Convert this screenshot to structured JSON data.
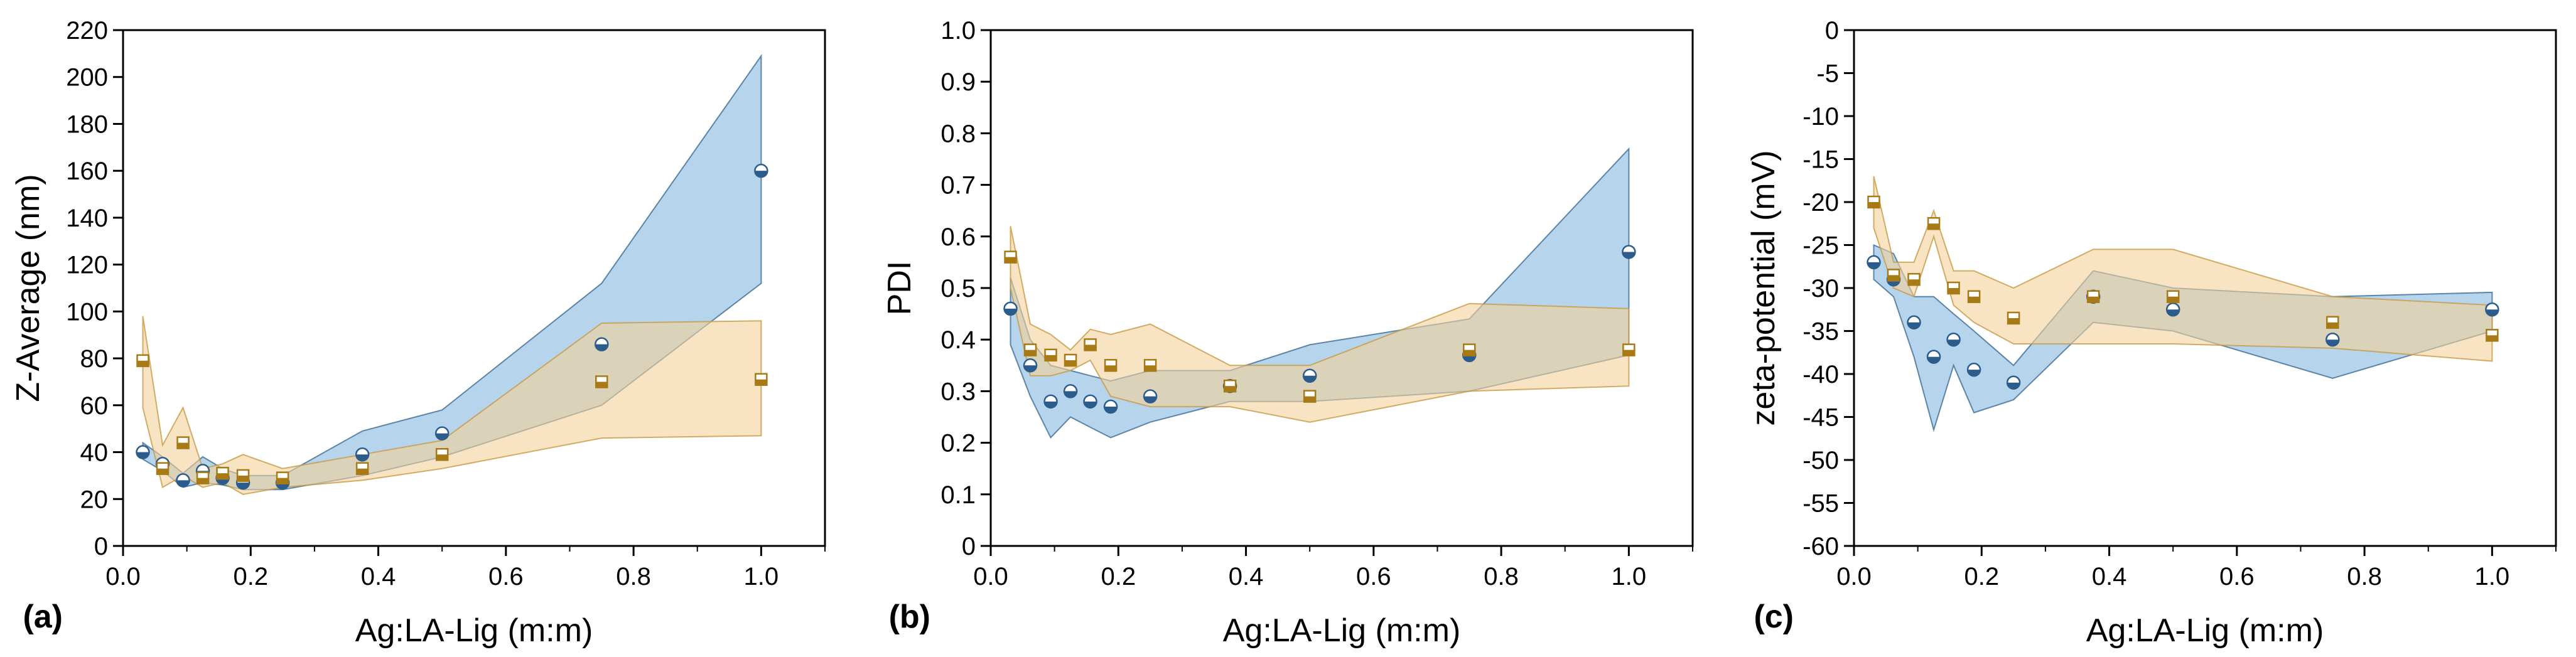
{
  "colors": {
    "blue_band_fill": "#a9cde9",
    "blue_band_edge": "#3c6c95",
    "orange_band_fill": "#f4d19a",
    "orange_band_edge": "#c79a45",
    "blue_marker": "#2c5c8c",
    "orange_marker": "#a77a16",
    "axis": "#000000"
  },
  "chart_data": [
    {
      "type": "scatter",
      "panel": "(a)",
      "xlabel": "Ag:LA-Lig (m:m)",
      "ylabel": "Z-Average (nm)",
      "xlim": [
        0.0,
        1.1
      ],
      "ylim": [
        0,
        220
      ],
      "xticks": [
        "0.0",
        "0.2",
        "0.4",
        "0.6",
        "0.8",
        "1.0"
      ],
      "xtick_values": [
        0.0,
        0.2,
        0.4,
        0.6,
        0.8,
        1.0
      ],
      "yticks": [
        "0",
        "20",
        "40",
        "60",
        "80",
        "100",
        "120",
        "140",
        "160",
        "180",
        "200",
        "220"
      ],
      "ytick_values": [
        0,
        20,
        40,
        60,
        80,
        100,
        120,
        140,
        160,
        180,
        200,
        220
      ],
      "series": [
        {
          "name": "blue",
          "color": "#2c5c8c",
          "x": [
            0.031,
            0.062,
            0.094,
            0.125,
            0.156,
            0.188,
            0.25,
            0.375,
            0.5,
            0.75,
            1.0
          ],
          "y": [
            40,
            35,
            28,
            32,
            29,
            27,
            27,
            39,
            48,
            86,
            160
          ],
          "band_upper": [
            44,
            38,
            31,
            38,
            33,
            30,
            30,
            49,
            58,
            112,
            209
          ],
          "band_lower": [
            37,
            32,
            25,
            27,
            26,
            24,
            24,
            30,
            38,
            60,
            112
          ]
        },
        {
          "name": "orange",
          "color": "#a77a16",
          "x": [
            0.031,
            0.062,
            0.094,
            0.125,
            0.156,
            0.188,
            0.25,
            0.375,
            0.5,
            0.75,
            1.0
          ],
          "y": [
            79,
            33,
            44,
            29,
            31,
            30,
            29,
            33,
            39,
            70,
            71
          ],
          "band_upper": [
            98,
            43,
            59,
            33,
            35,
            39,
            33,
            39,
            45,
            95,
            96
          ],
          "band_lower": [
            59,
            25,
            30,
            25,
            27,
            22,
            25,
            28,
            33,
            46,
            47
          ]
        }
      ]
    },
    {
      "type": "scatter",
      "panel": "(b)",
      "xlabel": "Ag:LA-Lig (m:m)",
      "ylabel": "PDI",
      "xlim": [
        0.0,
        1.1
      ],
      "ylim": [
        0,
        1.0
      ],
      "xticks": [
        "0.0",
        "0.2",
        "0.4",
        "0.6",
        "0.8",
        "1.0"
      ],
      "xtick_values": [
        0.0,
        0.2,
        0.4,
        0.6,
        0.8,
        1.0
      ],
      "yticks": [
        "0",
        "0.1",
        "0.2",
        "0.3",
        "0.4",
        "0.5",
        "0.6",
        "0.7",
        "0.8",
        "0.9",
        "1.0"
      ],
      "ytick_values": [
        0,
        0.1,
        0.2,
        0.3,
        0.4,
        0.5,
        0.6,
        0.7,
        0.8,
        0.9,
        1.0
      ],
      "series": [
        {
          "name": "blue",
          "color": "#2c5c8c",
          "x": [
            0.031,
            0.062,
            0.094,
            0.125,
            0.156,
            0.188,
            0.25,
            0.375,
            0.5,
            0.75,
            1.0
          ],
          "y": [
            0.46,
            0.35,
            0.28,
            0.3,
            0.28,
            0.27,
            0.29,
            0.31,
            0.33,
            0.37,
            0.57
          ],
          "band_upper": [
            0.52,
            0.4,
            0.35,
            0.34,
            0.33,
            0.32,
            0.34,
            0.34,
            0.39,
            0.44,
            0.77
          ],
          "band_lower": [
            0.39,
            0.29,
            0.21,
            0.25,
            0.23,
            0.21,
            0.24,
            0.28,
            0.28,
            0.3,
            0.37
          ]
        },
        {
          "name": "orange",
          "color": "#a77a16",
          "x": [
            0.031,
            0.062,
            0.094,
            0.125,
            0.156,
            0.188,
            0.25,
            0.375,
            0.5,
            0.75,
            1.0
          ],
          "y": [
            0.56,
            0.38,
            0.37,
            0.36,
            0.39,
            0.35,
            0.35,
            0.31,
            0.29,
            0.38,
            0.38
          ],
          "band_upper": [
            0.62,
            0.43,
            0.41,
            0.38,
            0.42,
            0.41,
            0.43,
            0.35,
            0.35,
            0.47,
            0.46
          ],
          "band_lower": [
            0.5,
            0.33,
            0.33,
            0.34,
            0.36,
            0.29,
            0.27,
            0.27,
            0.24,
            0.3,
            0.31
          ]
        }
      ]
    },
    {
      "type": "scatter",
      "panel": "(c)",
      "xlabel": "Ag:LA-Lig (m:m)",
      "ylabel": "zeta-potential (mV)",
      "xlim": [
        0.0,
        1.1
      ],
      "ylim": [
        -60,
        0
      ],
      "xticks": [
        "0.0",
        "0.2",
        "0.4",
        "0.6",
        "0.8",
        "1.0"
      ],
      "xtick_values": [
        0.0,
        0.2,
        0.4,
        0.6,
        0.8,
        1.0
      ],
      "yticks": [
        "0",
        "-5",
        "-10",
        "-15",
        "-20",
        "-25",
        "-30",
        "-35",
        "-40",
        "-45",
        "-50",
        "-55",
        "-60"
      ],
      "ytick_values": [
        0,
        -5,
        -10,
        -15,
        -20,
        -25,
        -30,
        -35,
        -40,
        -45,
        -50,
        -55,
        -60
      ],
      "series": [
        {
          "name": "blue",
          "color": "#2c5c8c",
          "x": [
            0.031,
            0.062,
            0.094,
            0.125,
            0.156,
            0.188,
            0.25,
            0.375,
            0.5,
            0.75,
            1.0
          ],
          "y": [
            -27,
            -29,
            -34,
            -38,
            -36,
            -39.5,
            -41,
            -31,
            -32.5,
            -36,
            -32.5
          ],
          "band_upper": [
            -25,
            -26,
            -31,
            -31,
            -33,
            -35,
            -39,
            -28,
            -30,
            -31,
            -30.5
          ],
          "band_lower": [
            -29,
            -31,
            -38,
            -46.5,
            -39,
            -44.5,
            -43,
            -34,
            -35,
            -40.5,
            -35
          ]
        },
        {
          "name": "orange",
          "color": "#a77a16",
          "x": [
            0.031,
            0.062,
            0.094,
            0.125,
            0.156,
            0.188,
            0.25,
            0.375,
            0.5,
            0.75,
            1.0
          ],
          "y": [
            -20,
            -28.5,
            -29,
            -22.5,
            -30,
            -31,
            -33.5,
            -31,
            -31,
            -34,
            -35.5
          ],
          "band_upper": [
            -17,
            -27,
            -27,
            -21,
            -28,
            -28,
            -30,
            -25.5,
            -25.5,
            -31,
            -32
          ],
          "band_lower": [
            -23,
            -30,
            -31,
            -24,
            -32,
            -34,
            -36.5,
            -36.5,
            -36.5,
            -37,
            -38.5
          ]
        }
      ]
    }
  ]
}
